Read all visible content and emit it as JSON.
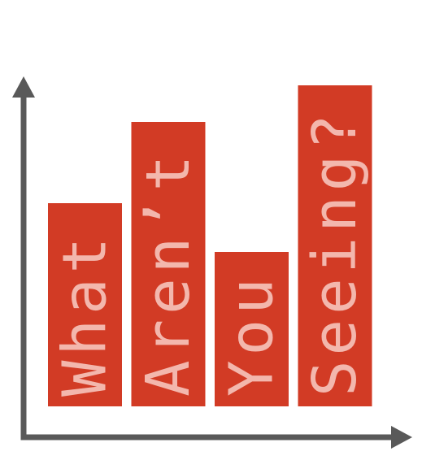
{
  "chart_data": {
    "type": "bar",
    "categories": [
      "What",
      "Aren’t",
      "You",
      "Seeing?"
    ],
    "values": [
      250,
      350,
      190,
      395
    ],
    "ylim": [
      0,
      400
    ],
    "grid": false,
    "colors": {
      "bar": "#d23b25",
      "label": "#f3b7ad",
      "axis": "#595959"
    }
  }
}
